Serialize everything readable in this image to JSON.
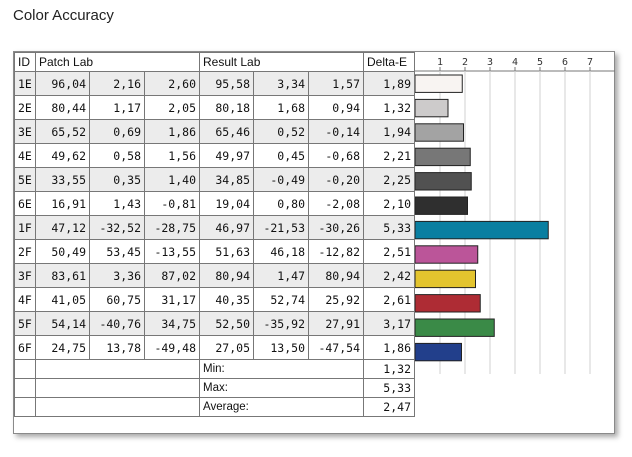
{
  "title": "Color Accuracy",
  "headers": {
    "id": "ID",
    "patch": "Patch Lab",
    "result": "Result Lab",
    "delta": "Delta-E"
  },
  "axis_ticks": [
    "1",
    "2",
    "3",
    "4",
    "5",
    "6",
    "7"
  ],
  "rows": [
    {
      "id": "1E",
      "patch": [
        "96,04",
        "2,16",
        "2,60"
      ],
      "result": [
        "95,58",
        "3,34",
        "1,57"
      ],
      "delta": "1,89",
      "color": "#f8f4f2"
    },
    {
      "id": "2E",
      "patch": [
        "80,44",
        "1,17",
        "2,05"
      ],
      "result": [
        "80,18",
        "1,68",
        "0,94"
      ],
      "delta": "1,32",
      "color": "#cdcbcb"
    },
    {
      "id": "3E",
      "patch": [
        "65,52",
        "0,69",
        "1,86"
      ],
      "result": [
        "65,46",
        "0,52",
        "-0,14"
      ],
      "delta": "1,94",
      "color": "#a3a3a3"
    },
    {
      "id": "4E",
      "patch": [
        "49,62",
        "0,58",
        "1,56"
      ],
      "result": [
        "49,97",
        "0,45",
        "-0,68"
      ],
      "delta": "2,21",
      "color": "#777777"
    },
    {
      "id": "5E",
      "patch": [
        "33,55",
        "0,35",
        "1,40"
      ],
      "result": [
        "34,85",
        "-0,49",
        "-0,20"
      ],
      "delta": "2,25",
      "color": "#515151"
    },
    {
      "id": "6E",
      "patch": [
        "16,91",
        "1,43",
        "-0,81"
      ],
      "result": [
        "19,04",
        "0,80",
        "-2,08"
      ],
      "delta": "2,10",
      "color": "#2f2f2f"
    },
    {
      "id": "1F",
      "patch": [
        "47,12",
        "-32,52",
        "-28,75"
      ],
      "result": [
        "46,97",
        "-21,53",
        "-30,26"
      ],
      "delta": "5,33",
      "color": "#0a7fa1"
    },
    {
      "id": "2F",
      "patch": [
        "50,49",
        "53,45",
        "-13,55"
      ],
      "result": [
        "51,63",
        "46,18",
        "-12,82"
      ],
      "delta": "2,51",
      "color": "#bb5599"
    },
    {
      "id": "3F",
      "patch": [
        "83,61",
        "3,36",
        "87,02"
      ],
      "result": [
        "80,94",
        "1,47",
        "80,94"
      ],
      "delta": "2,42",
      "color": "#e3c42e"
    },
    {
      "id": "4F",
      "patch": [
        "41,05",
        "60,75",
        "31,17"
      ],
      "result": [
        "40,35",
        "52,74",
        "25,92"
      ],
      "delta": "2,61",
      "color": "#ae2c34"
    },
    {
      "id": "5F",
      "patch": [
        "54,14",
        "-40,76",
        "34,75"
      ],
      "result": [
        "52,50",
        "-35,92",
        "27,91"
      ],
      "delta": "3,17",
      "color": "#3a8a47"
    },
    {
      "id": "6F",
      "patch": [
        "24,75",
        "13,78",
        "-49,48"
      ],
      "result": [
        "27,05",
        "13,50",
        "-47,54"
      ],
      "delta": "1,86",
      "color": "#223f8b"
    }
  ],
  "summary": [
    {
      "label": "Min:",
      "value": "1,32"
    },
    {
      "label": "Max:",
      "value": "5,33"
    },
    {
      "label": "Average:",
      "value": "2,47"
    }
  ],
  "chart_data": {
    "type": "bar",
    "orientation": "horizontal",
    "categories": [
      "1E",
      "2E",
      "3E",
      "4E",
      "5E",
      "6E",
      "1F",
      "2F",
      "3F",
      "4F",
      "5F",
      "6F"
    ],
    "values": [
      1.89,
      1.32,
      1.94,
      2.21,
      2.25,
      2.1,
      5.33,
      2.51,
      2.42,
      2.61,
      3.17,
      1.86
    ],
    "xlim": [
      0,
      7.4
    ],
    "grid": true
  }
}
